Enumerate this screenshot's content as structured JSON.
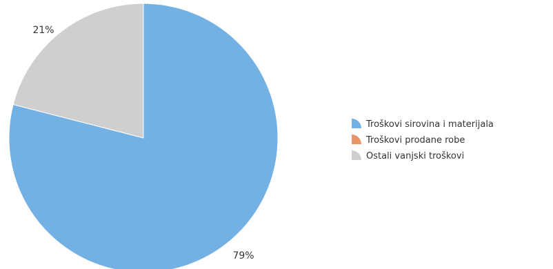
{
  "chart_data": {
    "type": "pie",
    "title": "",
    "legend_position": "right",
    "slices": [
      {
        "label": "Troškovi sirovina i materijala",
        "value": 79,
        "display": "79%",
        "color": "#73b0e3"
      },
      {
        "label": "Troškovi prodane robe",
        "value": 0,
        "display": "",
        "color": "#e8956a"
      },
      {
        "label": "Ostali vanjski troškovi",
        "value": 21,
        "display": "21%",
        "color": "#cfcfcf"
      }
    ]
  }
}
